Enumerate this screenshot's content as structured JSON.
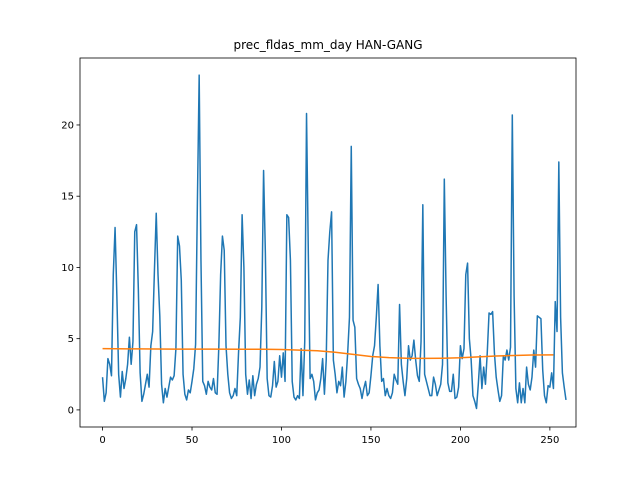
{
  "chart_data": {
    "type": "line",
    "title": "prec_fldas_mm_day HAN-GANG",
    "xlabel": "",
    "ylabel": "",
    "xlim": [
      -12.6,
      264.6
    ],
    "ylim": [
      -1.2,
      24.7
    ],
    "x_ticks": [
      0,
      50,
      100,
      150,
      200,
      250
    ],
    "y_ticks": [
      0,
      5,
      10,
      15,
      20
    ],
    "grid": false,
    "legend": "none",
    "series": [
      {
        "color": "#1f77b4",
        "x_start": 0,
        "x_step": 1,
        "values": [
          2.3,
          0.6,
          1.2,
          3.6,
          3.2,
          2.4,
          9.5,
          12.8,
          8.0,
          2.5,
          0.9,
          2.7,
          1.5,
          2.2,
          3.2,
          5.1,
          3.2,
          4.8,
          12.5,
          13.0,
          8.5,
          2.6,
          0.6,
          1.1,
          1.8,
          2.5,
          1.6,
          4.5,
          5.5,
          9.8,
          13.8,
          9.5,
          6.6,
          1.8,
          0.5,
          1.5,
          0.9,
          1.6,
          2.3,
          2.1,
          2.4,
          4.3,
          12.2,
          11.5,
          9.1,
          2.5,
          1.1,
          0.7,
          1.4,
          1.2,
          2.0,
          2.9,
          4.6,
          14.5,
          23.5,
          10.5,
          2.0,
          1.7,
          1.1,
          2.0,
          1.6,
          1.4,
          2.2,
          1.2,
          1.1,
          4.5,
          9.5,
          12.2,
          11.2,
          4.5,
          2.5,
          1.2,
          0.8,
          1.0,
          1.5,
          1.0,
          4.0,
          6.5,
          13.7,
          10.0,
          2.5,
          1.1,
          2.1,
          0.8,
          2.4,
          1.0,
          1.8,
          2.2,
          3.0,
          7.2,
          16.8,
          11.0,
          2.2,
          1.0,
          0.9,
          1.7,
          3.4,
          1.6,
          2.0,
          3.8,
          2.3,
          4.0,
          2.0,
          13.7,
          13.5,
          10.5,
          2.0,
          0.9,
          0.7,
          1.0,
          0.8,
          4.3,
          1.0,
          4.8,
          20.8,
          11.0,
          2.2,
          2.5,
          2.0,
          0.7,
          1.2,
          1.4,
          2.2,
          3.6,
          1.1,
          3.5,
          10.5,
          12.5,
          13.9,
          3.5,
          2.5,
          1.2,
          2.0,
          1.7,
          3.0,
          0.9,
          2.0,
          4.0,
          6.5,
          18.5,
          6.3,
          5.8,
          2.2,
          1.8,
          1.5,
          0.8,
          1.5,
          2.0,
          1.0,
          1.2,
          2.4,
          3.8,
          4.5,
          6.5,
          8.8,
          4.5,
          2.0,
          2.2,
          1.0,
          1.5,
          1.0,
          0.8,
          1.2,
          2.5,
          2.1,
          1.8,
          7.4,
          3.2,
          2.0,
          1.0,
          2.2,
          4.5,
          3.5,
          3.8,
          4.9,
          3.5,
          2.4,
          2.0,
          4.8,
          14.4,
          2.5,
          2.0,
          1.5,
          1.0,
          1.0,
          2.3,
          1.8,
          1.0,
          1.4,
          1.8,
          3.2,
          16.2,
          8.0,
          1.9,
          1.3,
          1.3,
          2.5,
          0.8,
          0.9,
          1.6,
          4.5,
          3.6,
          4.3,
          9.5,
          10.3,
          5.0,
          3.5,
          1.0,
          0.6,
          0.1,
          1.8,
          3.8,
          1.5,
          3.0,
          1.8,
          4.0,
          6.8,
          6.7,
          6.9,
          4.0,
          2.3,
          1.4,
          0.6,
          1.0,
          3.8,
          3.5,
          4.2,
          3.5,
          4.4,
          20.7,
          8.0,
          1.5,
          0.5,
          1.9,
          0.5,
          1.5,
          0.5,
          3.0,
          1.8,
          1.4,
          2.3,
          4.2,
          3.0,
          6.6,
          6.5,
          6.4,
          2.8,
          1.0,
          0.5,
          1.7,
          1.6,
          2.6,
          1.5,
          7.6,
          5.5,
          17.4,
          6.5,
          2.6,
          1.6,
          0.7
        ]
      },
      {
        "color": "#ff7f0e",
        "x": [
          0,
          20,
          40,
          60,
          80,
          90,
          100,
          110,
          120,
          130,
          140,
          150,
          160,
          170,
          180,
          190,
          200,
          210,
          220,
          230,
          240,
          252
        ],
        "values": [
          4.3,
          4.28,
          4.27,
          4.27,
          4.26,
          4.26,
          4.24,
          4.2,
          4.15,
          4.05,
          3.9,
          3.75,
          3.67,
          3.63,
          3.62,
          3.63,
          3.66,
          3.72,
          3.78,
          3.82,
          3.85,
          3.86
        ]
      }
    ]
  }
}
